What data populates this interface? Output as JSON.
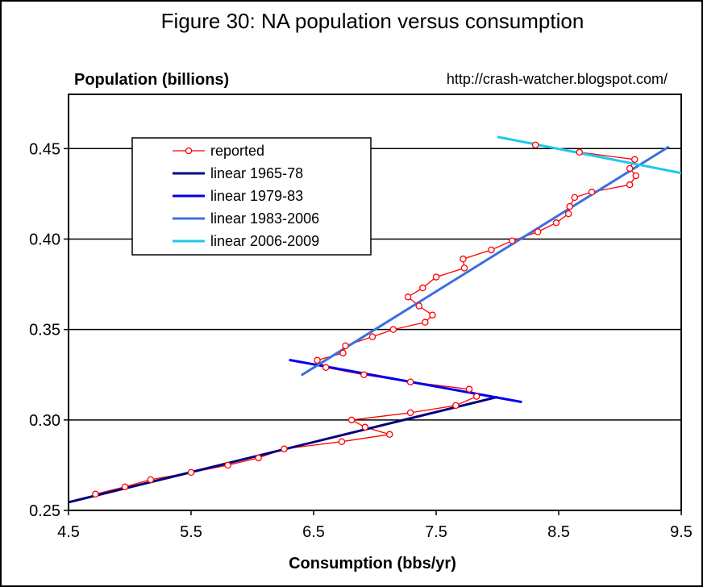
{
  "chart_data": {
    "type": "scatter",
    "title": "Figure 30: NA population versus consumption",
    "ylabel": "Population (billions)",
    "xlabel": "Consumption (bbs/yr)",
    "source": "http://crash-watcher.blogspot.com/",
    "xlim": [
      4.5,
      9.5
    ],
    "ylim": [
      0.25,
      0.48
    ],
    "x_ticks": [
      "4.5",
      "5.5",
      "6.5",
      "7.5",
      "8.5",
      "9.5"
    ],
    "y_ticks": [
      "0.25",
      "0.30",
      "0.35",
      "0.40",
      "0.45"
    ],
    "grid": "horizontal",
    "legend_position": "upper-left",
    "series": [
      {
        "name": "reported",
        "color": "#ff0000",
        "marker": "open-circle",
        "points": [
          [
            4.72,
            0.259
          ],
          [
            4.96,
            0.263
          ],
          [
            5.17,
            0.267
          ],
          [
            5.5,
            0.271
          ],
          [
            5.8,
            0.275
          ],
          [
            6.05,
            0.279
          ],
          [
            6.26,
            0.284
          ],
          [
            6.73,
            0.288
          ],
          [
            7.12,
            0.292
          ],
          [
            6.92,
            0.296
          ],
          [
            6.81,
            0.3
          ],
          [
            7.29,
            0.304
          ],
          [
            7.66,
            0.308
          ],
          [
            7.83,
            0.313
          ],
          [
            7.77,
            0.317
          ],
          [
            7.29,
            0.321
          ],
          [
            6.91,
            0.325
          ],
          [
            6.6,
            0.329
          ],
          [
            6.53,
            0.333
          ],
          [
            6.74,
            0.337
          ],
          [
            6.76,
            0.341
          ],
          [
            6.98,
            0.346
          ],
          [
            7.15,
            0.35
          ],
          [
            7.41,
            0.354
          ],
          [
            7.47,
            0.358
          ],
          [
            7.36,
            0.363
          ],
          [
            7.27,
            0.368
          ],
          [
            7.39,
            0.373
          ],
          [
            7.5,
            0.379
          ],
          [
            7.73,
            0.384
          ],
          [
            7.72,
            0.389
          ],
          [
            7.95,
            0.394
          ],
          [
            8.12,
            0.399
          ],
          [
            8.33,
            0.404
          ],
          [
            8.48,
            0.409
          ],
          [
            8.58,
            0.414
          ],
          [
            8.59,
            0.418
          ],
          [
            8.63,
            0.423
          ],
          [
            8.77,
            0.426
          ],
          [
            9.08,
            0.43
          ],
          [
            9.13,
            0.435
          ],
          [
            9.08,
            0.439
          ],
          [
            9.12,
            0.444
          ],
          [
            8.67,
            0.448
          ],
          [
            8.31,
            0.452
          ]
        ]
      },
      {
        "name": "linear 1965-78",
        "color": "#000080",
        "line": [
          [
            4.5,
            0.2545
          ],
          [
            8.0,
            0.3127
          ]
        ]
      },
      {
        "name": "linear 1979-83",
        "color": "#0000ee",
        "line": [
          [
            6.3,
            0.3332
          ],
          [
            8.2,
            0.3099
          ]
        ]
      },
      {
        "name": "linear 1983-2006",
        "color": "#3b6fe0",
        "line": [
          [
            6.4,
            0.3247
          ],
          [
            9.4,
            0.4511
          ]
        ]
      },
      {
        "name": "linear 2006-2009",
        "color": "#1ec8ec",
        "line": [
          [
            8.0,
            0.4565
          ],
          [
            9.5,
            0.4365
          ]
        ]
      }
    ]
  }
}
